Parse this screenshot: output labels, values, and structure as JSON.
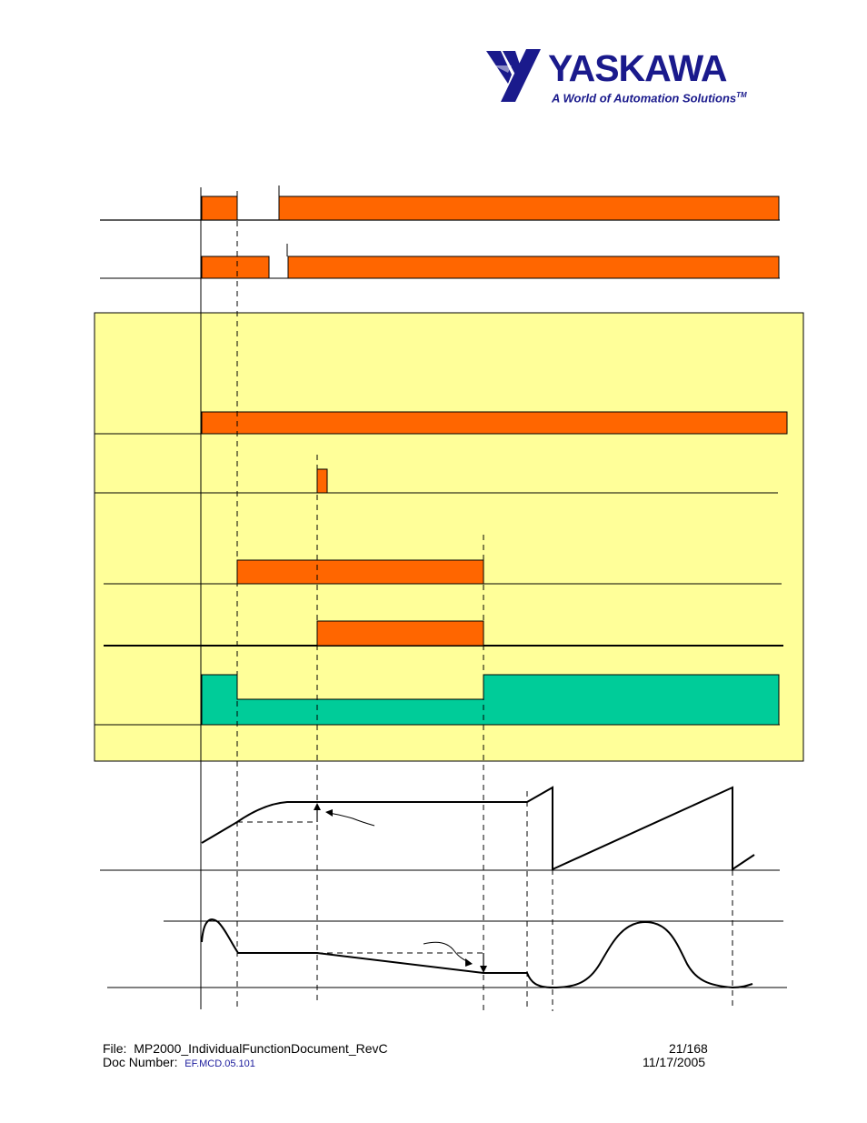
{
  "header": {
    "brand": "YASKAWA",
    "tagline": "A World of Automation Solutions",
    "trademark": "TM"
  },
  "colors": {
    "signal_on": "#ff6600",
    "monitor": "#00cc99",
    "panel": "#ffff99",
    "brand": "#1a1a8c"
  },
  "footer": {
    "file_label": "File:",
    "file_name": "MP2000_IndividualFunctionDocument_RevC",
    "doc_label": "Doc Number:",
    "doc_number": "EF.MCD.05.101",
    "page": "21/168",
    "date": "11/17/2005"
  }
}
